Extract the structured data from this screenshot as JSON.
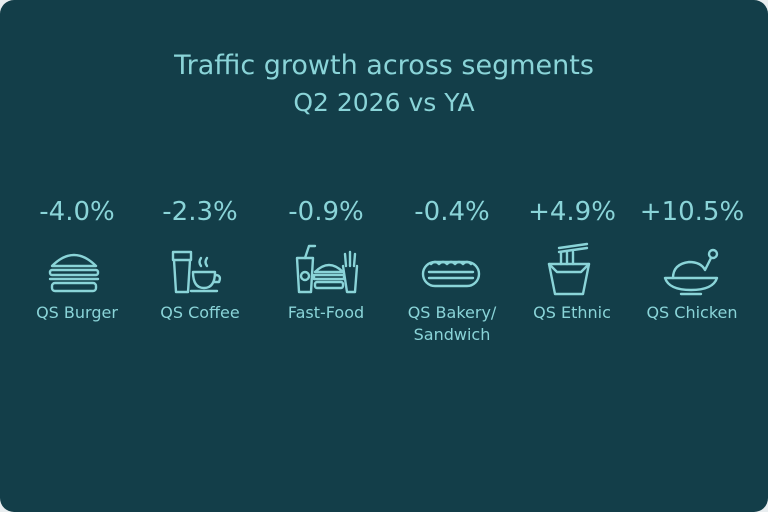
{
  "title": "Traffic growth across segments",
  "subtitle": "Q2 2026 vs YA",
  "segments": [
    {
      "value": "-4.0%",
      "label": "QS Burger"
    },
    {
      "value": "-2.3%",
      "label": "QS Coffee"
    },
    {
      "value": "-0.9%",
      "label": "Fast-Food"
    },
    {
      "value": "-0.4%",
      "label": "QS Bakery/ Sandwich"
    },
    {
      "value": "+4.9%",
      "label": "QS Ethnic"
    },
    {
      "value": "+10.5%",
      "label": "QS Chicken"
    }
  ]
}
